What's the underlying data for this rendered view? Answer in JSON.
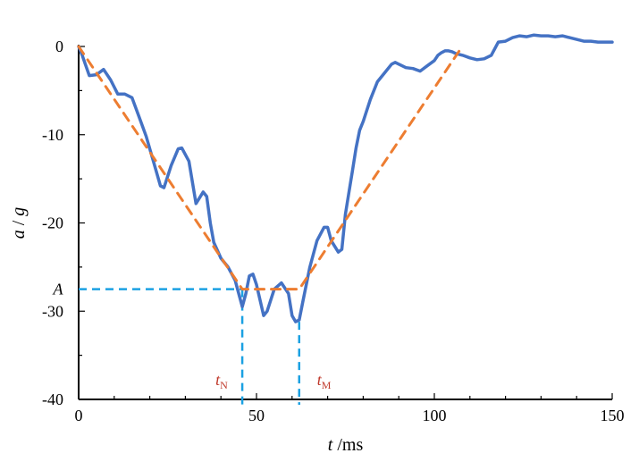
{
  "chart_data": {
    "type": "line",
    "xlabel": {
      "var": "t",
      "unit": "/ms"
    },
    "ylabel": {
      "var": "a",
      "sep": " / ",
      "unit": "g"
    },
    "xlim": [
      0,
      150
    ],
    "ylim": [
      -40,
      0
    ],
    "x_ticks": [
      0,
      50,
      100,
      150
    ],
    "y_ticks": [
      0,
      -10,
      -20,
      -30,
      -40
    ],
    "grid": false,
    "colors": {
      "measured": "#4472C4",
      "idealized": "#ED7D31",
      "reference": "#1BA1E2",
      "marker_text": "#C0392B"
    },
    "series": [
      {
        "style": "solid",
        "x": [
          0,
          1,
          3,
          5,
          7,
          9,
          11,
          13,
          15,
          17,
          19,
          21,
          23,
          24,
          26,
          28,
          29,
          31,
          33,
          35,
          36,
          37,
          38,
          40,
          42,
          44,
          45,
          46,
          47,
          48,
          49,
          50,
          52,
          53,
          55,
          57,
          59,
          60,
          61,
          62,
          63,
          65,
          67,
          69,
          70,
          71,
          73,
          74,
          75,
          76,
          77,
          78,
          79,
          80,
          82,
          84,
          86,
          88,
          89,
          90,
          92,
          94,
          96,
          98,
          100,
          101,
          102,
          103,
          104,
          105,
          106,
          108,
          110,
          112,
          114,
          116,
          118,
          120,
          122,
          124,
          126,
          128,
          130,
          132,
          134,
          136,
          138,
          140,
          142,
          144,
          146,
          148,
          150
        ],
        "y": [
          0,
          -1,
          -3.3,
          -3.2,
          -2.6,
          -3.8,
          -5.4,
          -5.4,
          -5.8,
          -8,
          -10.2,
          -13,
          -15.8,
          -16,
          -13.5,
          -11.6,
          -11.5,
          -13,
          -17.8,
          -16.5,
          -17,
          -20,
          -22.2,
          -24,
          -25,
          -26.5,
          -28,
          -29.5,
          -28,
          -26,
          -25.8,
          -27,
          -30.5,
          -30,
          -27.5,
          -26.8,
          -28,
          -30.5,
          -31.2,
          -31,
          -29,
          -25,
          -22,
          -20.5,
          -20.5,
          -22,
          -23.3,
          -23,
          -19,
          -16.5,
          -14,
          -11.5,
          -9.5,
          -8.5,
          -6,
          -4,
          -3,
          -2,
          -1.8,
          -2,
          -2.4,
          -2.5,
          -2.8,
          -2.2,
          -1.6,
          -1,
          -0.7,
          -0.5,
          -0.5,
          -0.6,
          -0.8,
          -1,
          -1.3,
          -1.5,
          -1.4,
          -1,
          0.5,
          0.6,
          1,
          1.2,
          1.1,
          1.3,
          1.2,
          1.2,
          1.1,
          1.2,
          1,
          0.8,
          0.6,
          0.6,
          0.5,
          0.5,
          0.5
        ]
      },
      {
        "style": "dashed",
        "x": [
          0,
          46,
          62,
          107
        ],
        "y": [
          0,
          -27.5,
          -27.5,
          -0.5
        ]
      }
    ],
    "reference_lines": {
      "A_level": -27.5,
      "tN": 46,
      "tM": 62
    },
    "annotations": {
      "A": "A",
      "tN": {
        "main": "t",
        "sub": "N"
      },
      "tM": {
        "main": "t",
        "sub": "M"
      }
    }
  }
}
